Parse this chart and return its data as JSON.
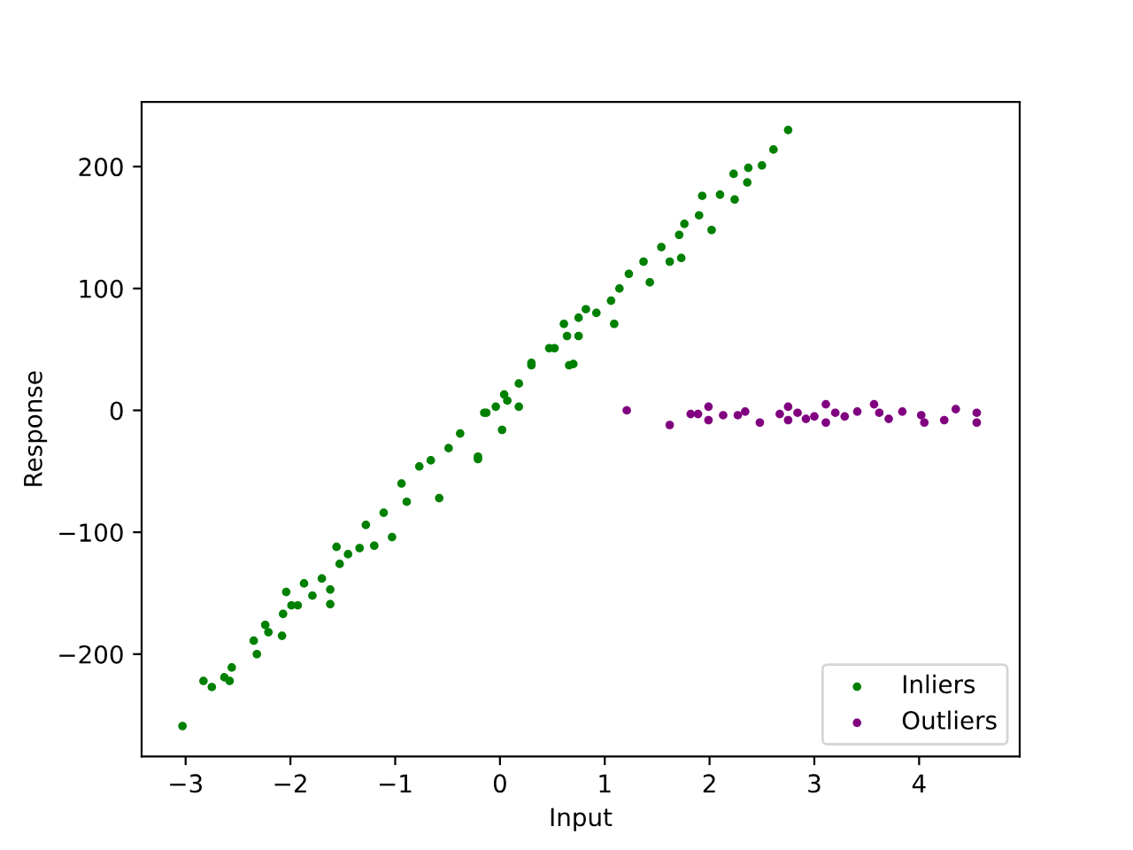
{
  "chart_data": {
    "type": "scatter",
    "xlabel": "Input",
    "ylabel": "Response",
    "xlim": [
      -3.42,
      4.96
    ],
    "ylim": [
      -284,
      253
    ],
    "xticks": [
      {
        "value": -3,
        "label": "−3"
      },
      {
        "value": -2,
        "label": "−2"
      },
      {
        "value": -1,
        "label": "−1"
      },
      0,
      1,
      2,
      3,
      4
    ],
    "yticks": [
      {
        "value": -200,
        "label": "−200"
      },
      {
        "value": -100,
        "label": "−100"
      },
      0,
      100,
      200
    ],
    "grid": false,
    "legend": "bottom right",
    "marker": "circle",
    "series": [
      {
        "name": "Inliers",
        "color": "#008000",
        "x": [
          -3.03,
          -2.83,
          -2.75,
          -2.63,
          -2.56,
          -2.58,
          -2.35,
          -2.32,
          -2.24,
          -2.21,
          -2.08,
          -2.07,
          -2.04,
          -1.99,
          -1.93,
          -1.87,
          -1.79,
          -1.7,
          -1.62,
          -1.62,
          -1.56,
          -1.53,
          -1.45,
          -1.34,
          -1.28,
          -1.2,
          -1.11,
          -1.03,
          -0.94,
          -0.89,
          -0.77,
          -0.66,
          -0.58,
          -0.49,
          -0.38,
          -0.21,
          -0.15,
          -0.04,
          0.07,
          0.18,
          0.3,
          0.47,
          0.64,
          0.75,
          0.7,
          2.75,
          2.61,
          2.5,
          2.37,
          2.23,
          2.36,
          1.93,
          2.24,
          2.1,
          1.9,
          2.02,
          1.76,
          1.71,
          1.73,
          1.62,
          1.54,
          1.37,
          1.43,
          1.23,
          1.14,
          1.06,
          1.09,
          0.92,
          0.82,
          0.75,
          0.61,
          0.52,
          0.66,
          0.3,
          0.18,
          0.04,
          0.02,
          -0.21,
          -0.13
        ],
        "values": [
          -259,
          -222,
          -227,
          -219,
          -211,
          -222,
          -189,
          -200,
          -176,
          -182,
          -185,
          -167,
          -149,
          -160,
          -160,
          -142,
          -152,
          -138,
          -159,
          -147,
          -112,
          -126,
          -118,
          -113,
          -94,
          -111,
          -84,
          -104,
          -60,
          -75,
          -46,
          -41,
          -72,
          -31,
          -19,
          -40,
          -2,
          3,
          8,
          3,
          37,
          51,
          61,
          76,
          38,
          230,
          214,
          201,
          199,
          194,
          187,
          176,
          173,
          177,
          160,
          148,
          153,
          144,
          125,
          122,
          134,
          122,
          105,
          112,
          100,
          90,
          71,
          80,
          83,
          61,
          71,
          51,
          37,
          39,
          22,
          13,
          -16,
          -38,
          -2
        ]
      },
      {
        "name": "Outliers",
        "color": "#800080",
        "x": [
          1.21,
          1.62,
          1.82,
          1.89,
          1.99,
          1.99,
          2.13,
          2.27,
          2.34,
          2.48,
          2.67,
          2.75,
          2.75,
          2.84,
          2.92,
          3.0,
          3.11,
          3.11,
          3.2,
          3.29,
          3.41,
          3.57,
          3.62,
          3.71,
          3.84,
          4.02,
          4.05,
          4.24,
          4.35,
          4.55,
          4.55
        ],
        "values": [
          0,
          -12,
          -3,
          -3,
          3,
          -8,
          -4,
          -4,
          -1,
          -10,
          -3,
          3,
          -8,
          -2,
          -7,
          -5,
          5,
          -10,
          -2,
          -5,
          -1,
          5,
          -2,
          -7,
          -1,
          -4,
          -10,
          -8,
          1,
          -2,
          -10
        ]
      }
    ]
  }
}
